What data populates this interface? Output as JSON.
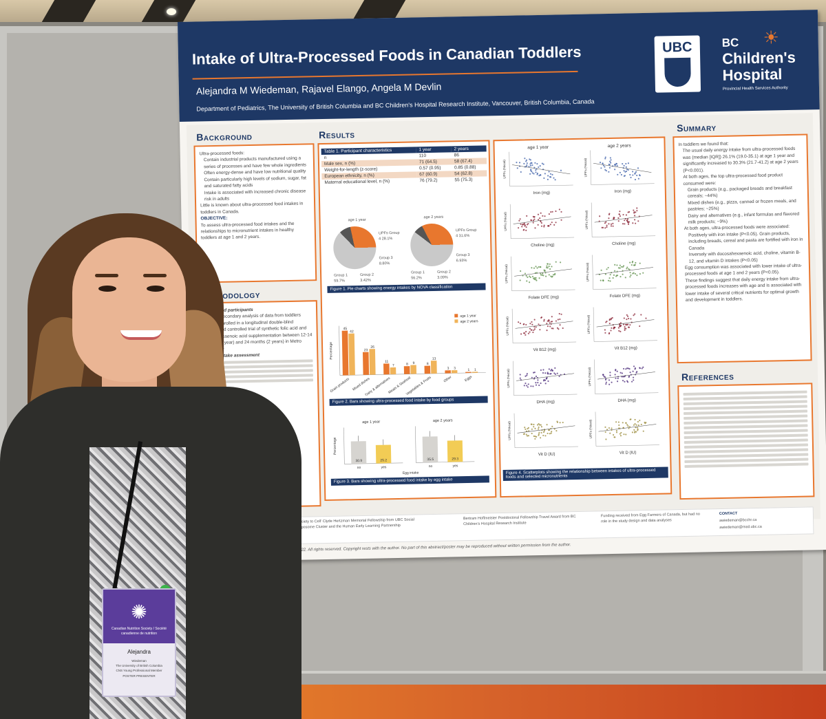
{
  "poster": {
    "title": "Intake of Ultra-Processed Foods in Canadian Toddlers",
    "authors": "Alejandra M Wiedeman, Rajavel Elango, Angela M Devlin",
    "affiliation": "Department of Pediatrics, The University of British Columbia and BC Children's Hospital Research Institute, Vancouver, British Columbia, Canada",
    "logos": {
      "ubc": "UBC",
      "bcch_line1": "BC",
      "bcch_line2": "Children's",
      "bcch_line3": "Hospital",
      "bcch_tag": "Provincial Health Services Authority"
    },
    "sections": {
      "background": "Background",
      "methodology": "Methodology",
      "results": "Results",
      "summary": "Summary",
      "references": "References"
    },
    "background": {
      "intro": "Ultra-processed foods:",
      "bullets": [
        "Contain industrial products manufactured using a series of processes and have few whole ingredients",
        "Often energy-dense and have low nutritional quality",
        "Contain particularly high levels of sodium, sugar, fat and saturated fatty acids",
        "Intake is associated with increased chronic disease risk in adults"
      ],
      "gap": "Little is known about ultra-processed food intakes in toddlers in Canada.",
      "objective_label": "OBJECTIVE:",
      "objective": "To assess ultra-processed food intakes and the relationships to micronutrient intakes in healthy toddlers at age 1 and 2 years."
    },
    "methodology": {
      "sub1": "Design and participants",
      "p1": "This is a secondary analysis of data from toddlers (n=133) enrolled in a longitudinal double-blind randomized controlled trial of synthetic folic acid and docosahexaenoic acid supplementation between 12-14 months (1 year) and 24 months (2 years) in Metro Vancouver",
      "sub2": "Dietary intake assessment"
    },
    "table1": {
      "caption": "Table 1. Participant characteristics",
      "headers": [
        "Table 1. Participant characteristics",
        "1 year",
        "2 years"
      ],
      "rows": [
        [
          "n",
          "110",
          "86"
        ],
        [
          "Male sex, n (%)",
          "71 (64.5)",
          "58 (67.4)"
        ],
        [
          "Weight-for-length (z-score)",
          "0.57 (0.95)",
          "0.85 (0.88)"
        ],
        [
          "European ethnicity, n (%)",
          "67 (60.9)",
          "54 (62.8)"
        ],
        [
          "Maternal educational level, n (%)",
          "76 (79.2)",
          "55 (75.3)"
        ]
      ]
    },
    "fig1": {
      "caption": "Figure 1. Pie charts showing energy intakes by NOVA classification",
      "left_title": "age 1 year",
      "right_title": "age 2 years",
      "left_labels": [
        "UPFs Group 4 28.1%",
        "Group 3 8.80%",
        "Group 1 59.7%",
        "Group 2 3.42%"
      ],
      "right_labels": [
        "UPFs Group 4 31.6%",
        "Group 3 6.93%",
        "Group 1 56.2%",
        "Group 2 3.09%"
      ]
    },
    "fig2": {
      "caption": "Figure 2. Bars showing ultra-processed food intake by food groups",
      "legend": [
        "age 1 year",
        "age 2 years"
      ],
      "ylabel": "Percentage"
    },
    "fig3": {
      "caption": "Figure 3. Bars showing ultra-processed food intake by egg intake",
      "titles": [
        "age 1 year",
        "age 2 years"
      ],
      "xlabel": "Egg intake",
      "ylabel": "Percentage"
    },
    "fig4": {
      "caption": "Figure 4. Scatterplots showing the relationship between intakes of ultra-processed foods and selected micronutrients",
      "col_titles": [
        "age 1 year",
        "age 2 years"
      ],
      "row_labels": [
        "Iron (mg)",
        "Choline (mg)",
        "Folate DFE (mg)",
        "Vit B12 (mg)",
        "DHA (mg)",
        "Vit D (IU)"
      ],
      "ylabel": "UPFs (%kcal)"
    },
    "summary": {
      "intro": "In toddlers we found that:",
      "p1": "The usual daily energy intake from ultra-processed foods was (median [IQR]) 26.1% (19.0-35.1) at age 1 year and significantly increased to 30.3% (21.7-41.2) at age 2 years (P<0.001).",
      "p2": "At both ages, the top ultra-processed food product consumed were:",
      "items": [
        "Grain products (e.g., packaged breads and breakfast cereals; ~44%)",
        "Mixed dishes (e.g., pizza, canned or frozen meals, and pastries; ~25%)",
        "Dairy and alternatives (e.g., infant formulas and flavored milk products; ~9%)"
      ],
      "p3": "At both ages, ultra-processed foods were associated:",
      "assoc": [
        "Positively with iron intake (P<0.05). Grain products, including breads, cereal and pasta are fortified with iron in Canada",
        "Inversely with docosahexaenoic acid, choline, vitamin B-12, and vitamin D intakes (P<0.05)"
      ],
      "p4": "Egg consumption was associated with lower intake of ultra-processed foods at age 1 and 2 years (P<0.05).",
      "p5": "These findings suggest that daily energy intake from ultra-processed foods increases with age and is associated with lower intake of several critical nutrients for optimal growth and development in toddlers."
    },
    "footer": {
      "fund1": "Society to Cell' Clyde Hertzman Memorial Fellowship from UBC Social Exposome Cluster and the Human Early Learning Partnership",
      "fund2": "Bertram Hoffmeister Postdoctoral Fellowship Travel Award from BC Children's Hospital Research Institute",
      "fund3": "Funding received from Egg Farmers of Canada, but had no role in the study design and data analyses",
      "contact_label": "CONTACT",
      "contact1": "awiedeman@bcchr.ca",
      "contact2": "awiedeman@mail.ubc.ca",
      "copyright": "2022. All rights reserved. Copyright rests with the author. No part of this abstract/poster may be reproduced without written permission from the author."
    }
  },
  "badge": {
    "org": "Canadian Nutrition Society / Société canadienne de nutrition",
    "name": "Alejandra",
    "surname": "Wiedeman",
    "line1": "The University of British Columbia",
    "line2": "CNS Young Professional Member",
    "line3": "POSTER PRESENTER"
  },
  "chart_data": [
    {
      "type": "bar",
      "title": "Figure 2. Bars showing ultra-processed food intake by food groups",
      "ylabel": "Percentage",
      "categories": [
        "Grain products",
        "Mixed dishes",
        "Dairy & alternatives",
        "Meats & Seafood",
        "Vegetables & Fruits",
        "Other",
        "Eggs"
      ],
      "series": [
        {
          "name": "age 1 year",
          "values": [
            45,
            23,
            11,
            8,
            8,
            3,
            1
          ]
        },
        {
          "name": "age 2 years",
          "values": [
            42,
            26,
            7,
            9,
            13,
            3,
            1
          ]
        }
      ]
    },
    {
      "type": "bar",
      "title": "Figure 3. Bars showing ultra-processed food intake by egg intake",
      "xlabel": "Egg intake",
      "ylabel": "Percentage",
      "categories": [
        "no",
        "yes"
      ],
      "series": [
        {
          "name": "age 1 year",
          "values": [
            30.9,
            25.2
          ]
        },
        {
          "name": "age 2 years",
          "values": [
            35.5,
            29.3
          ]
        }
      ]
    },
    {
      "type": "pie",
      "title": "age 1 year",
      "categories": [
        "Group 1",
        "Group 2",
        "Group 3",
        "Group 4 (UPFs)"
      ],
      "values": [
        59.7,
        3.42,
        8.8,
        28.1
      ]
    },
    {
      "type": "pie",
      "title": "age 2 years",
      "categories": [
        "Group 1",
        "Group 2",
        "Group 3",
        "Group 4 (UPFs)"
      ],
      "values": [
        56.2,
        3.09,
        6.93,
        31.6
      ]
    }
  ],
  "colors": {
    "navy": "#1e3865",
    "orange": "#e8772e",
    "pie_gray": "#c9c9c9",
    "pie_dark": "#555555",
    "bar1": "#e8772e",
    "bar2": "#f0b45a",
    "scatter": [
      "#3c5fa8",
      "#8a2435",
      "#5d8f4a",
      "#8a2435",
      "#4a2a7a",
      "#9a8a38"
    ]
  }
}
